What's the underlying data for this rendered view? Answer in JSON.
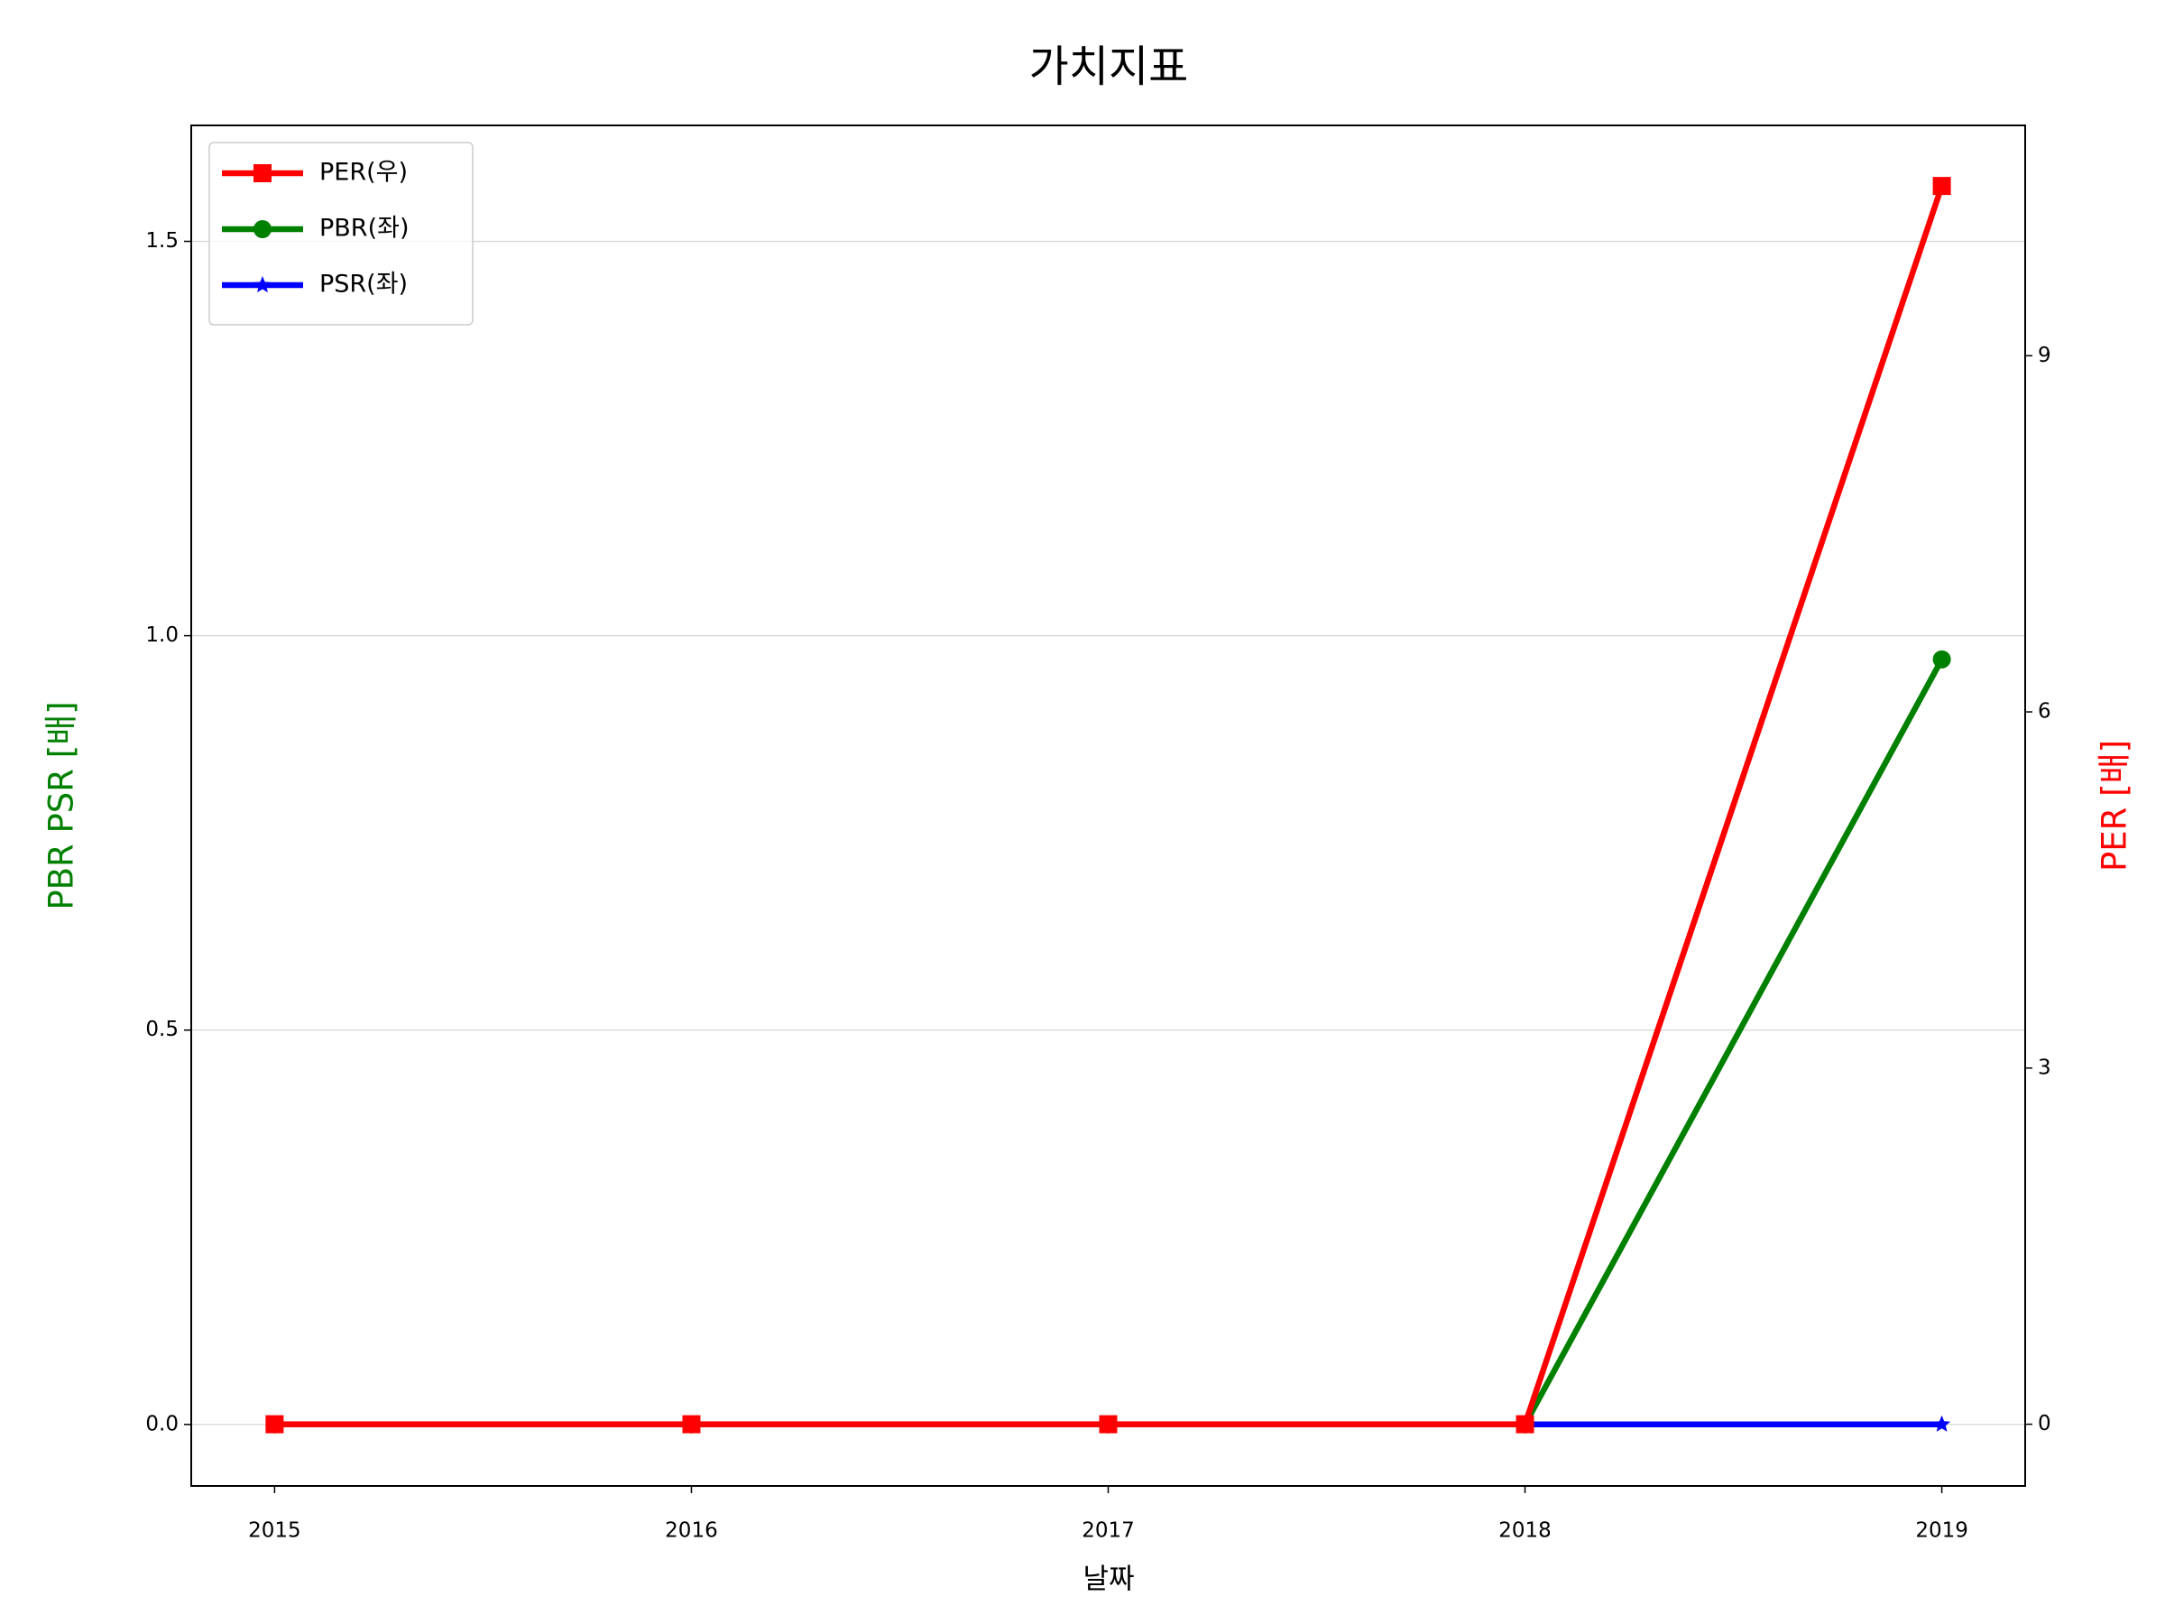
{
  "chart_data": {
    "type": "line",
    "title": "가치지표",
    "xlabel": "날짜",
    "ylabel": "PBR PSR [배]",
    "y2label": "PER [배]",
    "ylabel_color": "#008000",
    "y2label_color": "#ff0000",
    "x": [
      2015,
      2016,
      2017,
      2018,
      2019
    ],
    "xlim": [
      2014.8,
      2019.2
    ],
    "xticks": [
      2015,
      2016,
      2017,
      2018,
      2019
    ],
    "ylim": [
      -0.078,
      1.647
    ],
    "yticks": [
      {
        "value": 0,
        "label": "0.0"
      },
      0.5,
      {
        "value": 1,
        "label": "1.0"
      },
      1.5
    ],
    "y2lim": [
      -0.52,
      10.94
    ],
    "y2ticks": [
      0,
      3,
      6,
      9
    ],
    "grid": true,
    "legend": "upper left",
    "series": [
      {
        "name": "PER(우)",
        "color": "#ff0000",
        "marker": "square",
        "axis": "y2",
        "values": [
          0,
          0,
          0,
          0,
          10.43
        ]
      },
      {
        "name": "PBR(좌)",
        "color": "#008000",
        "marker": "circle",
        "values": [
          0,
          0,
          0,
          0,
          0.97
        ]
      },
      {
        "name": "PSR(좌)",
        "color": "#0000ff",
        "marker": "star",
        "values": [
          0,
          0,
          0,
          0,
          0
        ]
      }
    ]
  }
}
